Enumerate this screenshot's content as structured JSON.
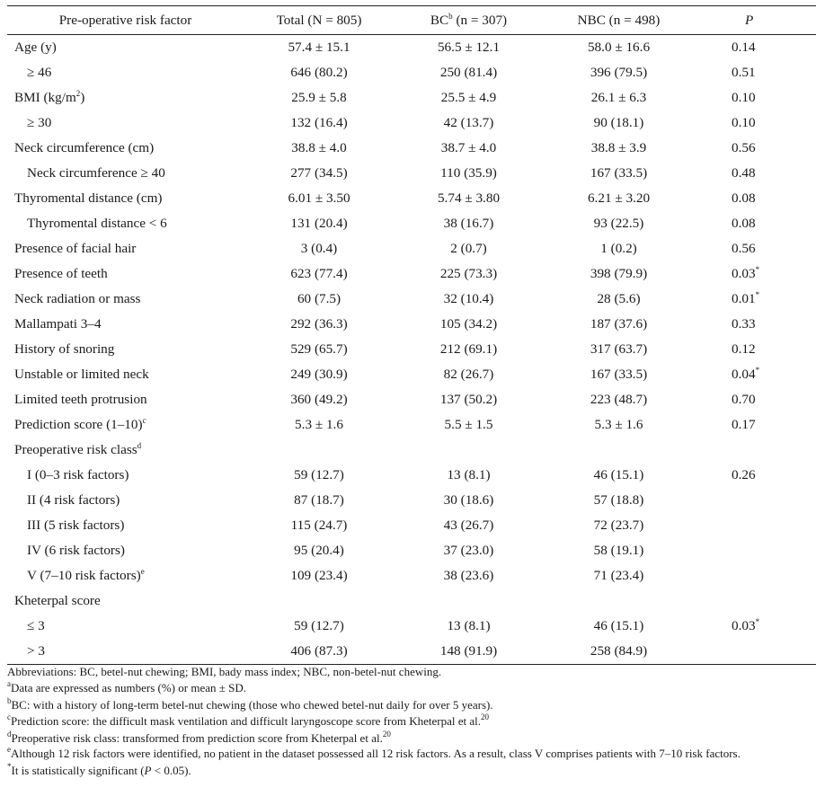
{
  "header": {
    "factor": "Pre-operative risk factor",
    "total": "Total (N = 805)",
    "bc": "BC",
    "bc_sup": "b",
    "bc_n": " (n = 307)",
    "nbc": "NBC (n = 498)",
    "p": "P"
  },
  "rows": [
    {
      "label": "Age (y)",
      "total": "57.4 ± 15.1",
      "bc": "56.5 ± 12.1",
      "nbc": "58.0 ± 16.6",
      "p": "0.14"
    },
    {
      "label": "≥ 46",
      "total": "646 (80.2)",
      "bc": "250 (81.4)",
      "nbc": "396 (79.5)",
      "p": "0.51"
    },
    {
      "label": "BMI (kg/m",
      "label_sup": "2",
      "label_after": ")",
      "total": "25.9 ± 5.8",
      "bc": "25.5 ± 4.9",
      "nbc": "26.1 ± 6.3",
      "p": "0.10"
    },
    {
      "label": "≥ 30",
      "total": "132 (16.4)",
      "bc": "42 (13.7)",
      "nbc": "90 (18.1)",
      "p": "0.10"
    },
    {
      "label": "Neck circumference (cm)",
      "total": "38.8 ± 4.0",
      "bc": "38.7 ± 4.0",
      "nbc": "38.8 ± 3.9",
      "p": "0.56"
    },
    {
      "label": "Neck circumference ≥ 40",
      "total": "277 (34.5)",
      "bc": "110 (35.9)",
      "nbc": "167 (33.5)",
      "p": "0.48"
    },
    {
      "label": "Thyromental distance (cm)",
      "total": "6.01 ± 3.50",
      "bc": "5.74 ± 3.80",
      "nbc": "6.21 ± 3.20",
      "p": "0.08"
    },
    {
      "label": "Thyromental distance < 6",
      "total": "131 (20.4)",
      "bc": "38 (16.7)",
      "nbc": "93 (22.5)",
      "p": "0.08"
    },
    {
      "label": "Presence of facial hair",
      "total": "3 (0.4)",
      "bc": "2 (0.7)",
      "nbc": "1 (0.2)",
      "p": "0.56"
    },
    {
      "label": "Presence of teeth",
      "total": "623 (77.4)",
      "bc": "225 (73.3)",
      "nbc": "398 (79.9)",
      "p": "0.03",
      "p_sup": "*"
    },
    {
      "label": "Neck radiation or mass",
      "total": "60 (7.5)",
      "bc": "32 (10.4)",
      "nbc": "28 (5.6)",
      "p": "0.01",
      "p_sup": "*"
    },
    {
      "label": "Mallampati 3–4",
      "total": "292 (36.3)",
      "bc": "105 (34.2)",
      "nbc": "187 (37.6)",
      "p": "0.33"
    },
    {
      "label": "History of snoring",
      "total": "529 (65.7)",
      "bc": "212 (69.1)",
      "nbc": "317 (63.7)",
      "p": "0.12"
    },
    {
      "label": "Unstable or limited neck",
      "total": "249 (30.9)",
      "bc": "82 (26.7)",
      "nbc": "167 (33.5)",
      "p": "0.04",
      "p_sup": "*"
    },
    {
      "label": "Limited teeth protrusion",
      "total": "360 (49.2)",
      "bc": "137 (50.2)",
      "nbc": "223 (48.7)",
      "p": "0.70"
    },
    {
      "label": "Prediction score (1–10)",
      "label_sup": "c",
      "total": "5.3 ± 1.6",
      "bc": "5.5 ± 1.5",
      "nbc": "5.3 ± 1.6",
      "p": "0.17"
    },
    {
      "label": "Preoperative risk class",
      "label_sup": "d",
      "total": "",
      "bc": "",
      "nbc": "",
      "p": ""
    },
    {
      "label": "I (0–3 risk factors)",
      "total": "59 (12.7)",
      "bc": "13 (8.1)",
      "nbc": "46 (15.1)",
      "p": "0.26"
    },
    {
      "label": "II (4 risk factors)",
      "total": "87 (18.7)",
      "bc": "30 (18.6)",
      "nbc": "57 (18.8)",
      "p": ""
    },
    {
      "label": "III (5 risk factors)",
      "total": "115 (24.7)",
      "bc": "43 (26.7)",
      "nbc": "72 (23.7)",
      "p": ""
    },
    {
      "label": "IV (6 risk factors)",
      "total": "95 (20.4)",
      "bc": "37 (23.0)",
      "nbc": "58 (19.1)",
      "p": ""
    },
    {
      "label": "V (7–10 risk factors)",
      "label_sup": "e",
      "total": "109 (23.4)",
      "bc": "38 (23.6)",
      "nbc": "71 (23.4)",
      "p": ""
    },
    {
      "label": "Kheterpal score",
      "total": "",
      "bc": "",
      "nbc": "",
      "p": ""
    },
    {
      "label": "≤ 3",
      "total": "59 (12.7)",
      "bc": "13 (8.1)",
      "nbc": "46 (15.1)",
      "p": "0.03",
      "p_sup": "*"
    },
    {
      "label": "> 3",
      "total": "406 (87.3)",
      "bc": "148 (91.9)",
      "nbc": "258 (84.9)",
      "p": ""
    }
  ],
  "footnotes": {
    "abbrev": "Abbreviations: BC, betel-nut chewing; BMI, bady mass index; NBC, non-betel-nut chewing.",
    "a_sup": "a",
    "a": "Data are expressed as numbers (%) or mean ± SD.",
    "b_sup": "b",
    "b": "BC: with a history of long-term betel-nut chewing (those who chewed betel-nut daily for over 5 years).",
    "c_sup": "c",
    "c": "Prediction score: the difficult mask ventilation and difficult laryngoscope score from Kheterpal et al.",
    "c_ref": "20",
    "d_sup": "d",
    "d": "Preoperative risk class: transformed from prediction score from Kheterpal et al.",
    "d_ref": "20",
    "e_sup": "e",
    "e": "Although 12 risk factors were identified, no patient in the dataset possessed all 12 risk factors. As a result, class V comprises patients with 7–10 risk factors.",
    "star_sup": "*",
    "star_pre": "It is statistically significant (",
    "star_italic": "P",
    "star_post": " < 0.05)."
  }
}
